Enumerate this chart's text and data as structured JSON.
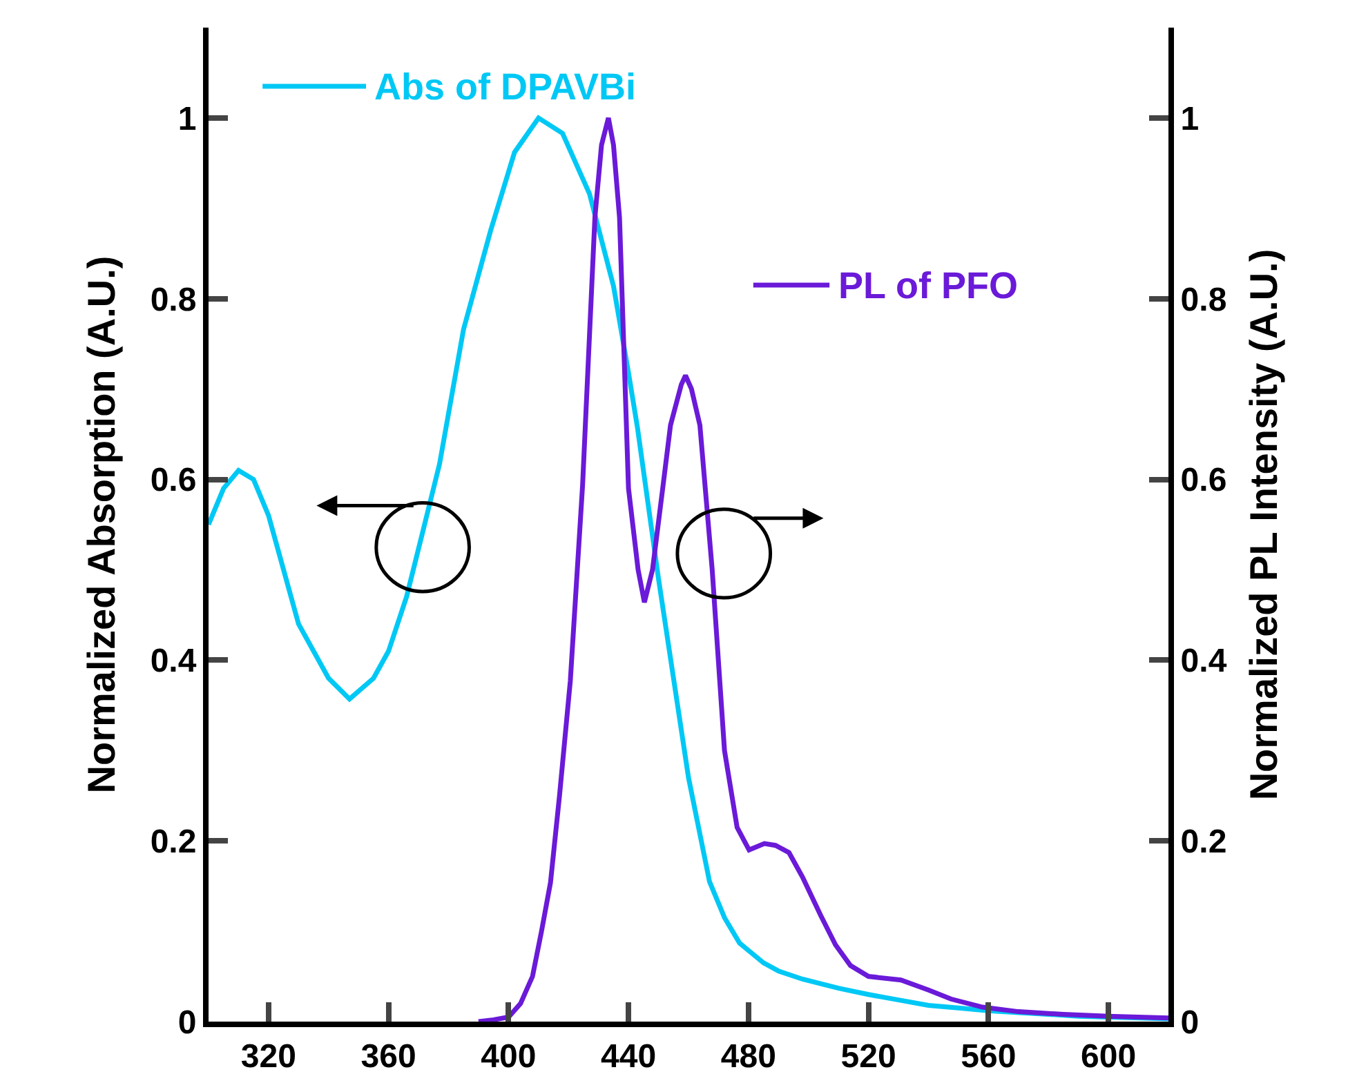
{
  "chart_data": {
    "type": "line",
    "ylabel": "Normalized Absorption (A.U.)",
    "y2label": "Normalized PL Intensity (A.U.)",
    "series": [
      {
        "name": "Abs of DPAVBi",
        "color": "#00c8f5",
        "x": [
          300,
          305,
          310,
          315,
          320,
          330,
          340,
          347,
          355,
          360,
          366,
          372,
          377,
          385,
          394,
          402,
          410,
          418,
          427,
          435,
          440,
          443,
          450,
          455,
          460,
          467,
          472,
          477,
          485,
          490,
          498,
          510,
          520,
          530,
          540,
          550,
          560,
          570,
          580,
          590,
          600,
          610,
          620
        ],
        "values": [
          0.55,
          0.59,
          0.61,
          0.6,
          0.56,
          0.44,
          0.38,
          0.357,
          0.38,
          0.41,
          0.47,
          0.55,
          0.617,
          0.766,
          0.875,
          0.962,
          1.0,
          0.983,
          0.916,
          0.814,
          0.718,
          0.657,
          0.49,
          0.38,
          0.27,
          0.155,
          0.115,
          0.087,
          0.065,
          0.056,
          0.047,
          0.037,
          0.03,
          0.024,
          0.018,
          0.015,
          0.012,
          0.01,
          0.008,
          0.006,
          0.005,
          0.004,
          0.003
        ]
      },
      {
        "name": "PL of PFO",
        "color": "#6a1ad8",
        "axis": "y2",
        "x": [
          390,
          395,
          400,
          404,
          408,
          411,
          414,
          417,
          420.6,
          424.7,
          428.8,
          431,
          433.3,
          435,
          437,
          440,
          443.2,
          445.3,
          448,
          451.4,
          454,
          457.6,
          459,
          461,
          463.8,
          467.9,
          472,
          476.2,
          480.2,
          485.3,
          489,
          493.5,
          498,
          504,
          509,
          514,
          520,
          530.8,
          540,
          547.5,
          558,
          570,
          585,
          600,
          620
        ],
        "values": [
          0,
          0.002,
          0.005,
          0.02,
          0.05,
          0.1,
          0.154,
          0.25,
          0.377,
          0.594,
          0.89,
          0.97,
          1.0,
          0.97,
          0.89,
          0.59,
          0.5,
          0.464,
          0.5,
          0.59,
          0.66,
          0.705,
          0.715,
          0.7,
          0.66,
          0.5,
          0.3,
          0.215,
          0.19,
          0.197,
          0.195,
          0.187,
          0.16,
          0.118,
          0.085,
          0.062,
          0.05,
          0.046,
          0.035,
          0.025,
          0.016,
          0.011,
          0.008,
          0.006,
          0.004
        ]
      }
    ],
    "xlim": [
      300,
      620
    ],
    "xticks": [
      320,
      360,
      400,
      440,
      480,
      520,
      560,
      600
    ],
    "ylim": [
      0,
      1.1
    ],
    "yticks": [
      0,
      0.2,
      0.4,
      0.6,
      0.8,
      1
    ],
    "y2lim": [
      0,
      1.1
    ],
    "y2ticks": [
      0,
      0.2,
      0.4,
      0.6,
      0.8,
      1
    ],
    "legend": "top left",
    "marker": "none",
    "line_style": "solid"
  }
}
